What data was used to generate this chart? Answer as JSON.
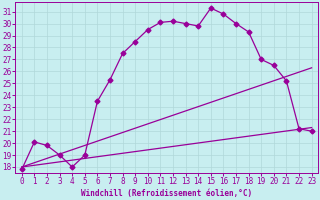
{
  "xlabel": "Windchill (Refroidissement éolien,°C)",
  "bg_color": "#c8eef0",
  "grid_color": "#b0d8da",
  "line_color": "#990099",
  "xlim": [
    -0.5,
    23.5
  ],
  "ylim": [
    17.5,
    31.8
  ],
  "xticks": [
    0,
    1,
    2,
    3,
    4,
    5,
    6,
    7,
    8,
    9,
    10,
    11,
    12,
    13,
    14,
    15,
    16,
    17,
    18,
    19,
    20,
    21,
    22,
    23
  ],
  "yticks": [
    18,
    19,
    20,
    21,
    22,
    23,
    24,
    25,
    26,
    27,
    28,
    29,
    30,
    31
  ],
  "curve1_x": [
    0,
    1,
    2,
    3,
    4,
    5,
    6,
    7,
    8,
    9,
    10,
    11,
    12,
    13,
    14,
    15,
    16,
    17,
    18,
    19,
    20,
    21,
    22,
    23
  ],
  "curve1_y": [
    17.8,
    20.1,
    19.8,
    19.0,
    18.0,
    19.0,
    23.5,
    25.3,
    27.5,
    28.5,
    29.5,
    30.1,
    30.2,
    30.0,
    29.8,
    31.3,
    30.8,
    30.0,
    29.3,
    27.0,
    26.5,
    25.2,
    21.2,
    21.0
  ],
  "line1_x": [
    0,
    23
  ],
  "line1_y": [
    18.0,
    21.3
  ],
  "line2_x": [
    0,
    23
  ],
  "line2_y": [
    18.0,
    26.3
  ],
  "marker": "D",
  "marker_size": 2.5,
  "line_width": 0.9,
  "tick_fontsize": 5.5,
  "xlabel_fontsize": 5.5
}
